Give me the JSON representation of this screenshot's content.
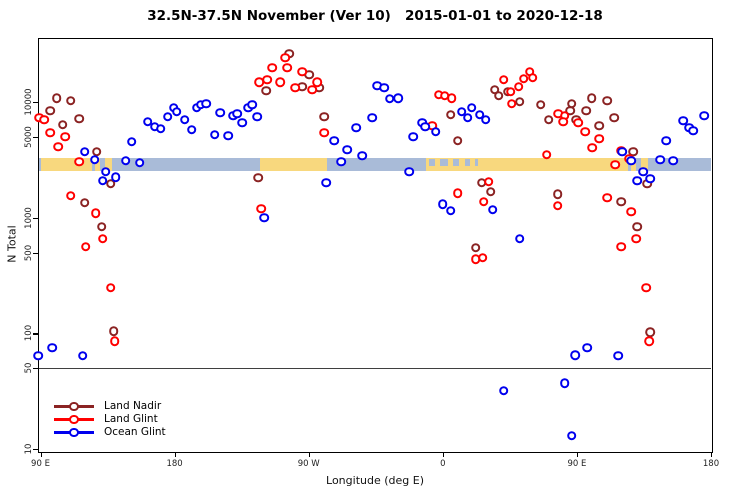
{
  "title": "32.5N-37.5N November (Ver 10)   2015-01-01 to 2020-12-18",
  "chart_data": {
    "type": "scatter",
    "title": "32.5N-37.5N November (Ver 10)   2015-01-01 to 2020-12-18",
    "xlabel": "Longitude (deg E)",
    "ylabel": "N Total",
    "y_scale": "log10",
    "y_domain": [
      9.6,
      36000
    ],
    "y_ticks": [
      {
        "v": 10,
        "label": "10"
      },
      {
        "v": 50,
        "label": "50"
      },
      {
        "v": 100,
        "label": "100"
      },
      {
        "v": 500,
        "label": "500"
      },
      {
        "v": 1000,
        "label": "1000"
      },
      {
        "v": 5000,
        "label": "5000"
      },
      {
        "v": 10000,
        "label": "10000"
      }
    ],
    "x_axis_span_deg": 450,
    "x_axis_note": "axis starts at 90E and wraps eastward through 180, 90W, 0, 90E to 180",
    "x_ticks": [
      {
        "d": 0,
        "label": "90 E"
      },
      {
        "d": 90,
        "label": "180"
      },
      {
        "d": 180,
        "label": "90 W"
      },
      {
        "d": 270,
        "label": "0"
      },
      {
        "d": 360,
        "label": "90 E"
      },
      {
        "d": 450,
        "label": "180"
      }
    ],
    "reference_line": {
      "value": 50,
      "color": "#3f3f3f"
    },
    "land_ocean_strip": {
      "value_range": [
        2550,
        3310
      ],
      "ocean_color": "#A9BBD8",
      "land_color": "#F8D87E",
      "land_segments_deg": [
        [
          0,
          34.5
        ],
        [
          36.5,
          40
        ],
        [
          43,
          48
        ],
        [
          147.5,
          192.5
        ],
        [
          258.5,
          394.5
        ],
        [
          396.5,
          400
        ],
        [
          403,
          408
        ]
      ],
      "ocean_patches_deg": [
        [
          260.5,
          265
        ],
        [
          268,
          273.5
        ],
        [
          277,
          281
        ],
        [
          285,
          288
        ],
        [
          291.5,
          293.5
        ]
      ]
    },
    "series": [
      {
        "name": "Land Nadir",
        "color": "#8B2323",
        "points": [
          [
            11,
            10900
          ],
          [
            20.4,
            10300
          ],
          [
            6.4,
            8440
          ],
          [
            25.8,
            7200
          ],
          [
            15,
            6380
          ],
          [
            37.8,
            3730
          ],
          [
            47.2,
            1970
          ],
          [
            29.8,
            1350
          ],
          [
            41.2,
            836
          ],
          [
            49.2,
            105
          ],
          [
            167,
            26300
          ],
          [
            180.3,
            17300
          ],
          [
            151.6,
            12600
          ],
          [
            175.7,
            13600
          ],
          [
            187,
            13400
          ],
          [
            190.4,
            7490
          ],
          [
            146.2,
            2220
          ],
          [
            275.4,
            7800
          ],
          [
            280.1,
            4640
          ],
          [
            296.1,
            2010
          ],
          [
            302.2,
            1680
          ],
          [
            292.1,
            550
          ],
          [
            304.8,
            12800
          ],
          [
            307.5,
            11400
          ],
          [
            313.5,
            12300
          ],
          [
            321.6,
            10100
          ],
          [
            335.6,
            9510
          ],
          [
            341,
            7050
          ],
          [
            347,
            1610
          ],
          [
            356.4,
            9710
          ],
          [
            355.7,
            8440
          ],
          [
            359.7,
            7050
          ],
          [
            366.4,
            8440
          ],
          [
            369.8,
            10900
          ],
          [
            375.1,
            6260
          ],
          [
            380.5,
            10300
          ],
          [
            385.2,
            7340
          ],
          [
            397.9,
            3730
          ],
          [
            389.8,
            1380
          ],
          [
            400.5,
            836
          ],
          [
            407.2,
            1970
          ],
          [
            409.2,
            103
          ]
        ]
      },
      {
        "name": "Land Glint",
        "color": "#FF0000",
        "points": [
          [
            -1,
            7340
          ],
          [
            2.3,
            7050
          ],
          [
            6.4,
            5450
          ],
          [
            16.4,
            5030
          ],
          [
            11.7,
            4120
          ],
          [
            25.8,
            3060
          ],
          [
            20.4,
            1550
          ],
          [
            37.1,
            1100
          ],
          [
            41.8,
            658
          ],
          [
            30.4,
            561
          ],
          [
            47.2,
            248
          ],
          [
            49.9,
            86
          ],
          [
            155.6,
            19900
          ],
          [
            164.3,
            24300
          ],
          [
            165.6,
            19900
          ],
          [
            160.9,
            15000
          ],
          [
            152.2,
            15700
          ],
          [
            146.9,
            15000
          ],
          [
            171,
            13400
          ],
          [
            175.7,
            18400
          ],
          [
            182.4,
            12800
          ],
          [
            185.7,
            15000
          ],
          [
            190.4,
            5450
          ],
          [
            148.2,
            1200
          ],
          [
            267.3,
            11600
          ],
          [
            271.4,
            11400
          ],
          [
            276,
            10900
          ],
          [
            262.7,
            6260
          ],
          [
            280.1,
            1640
          ],
          [
            300.8,
            2050
          ],
          [
            297.4,
            1380
          ],
          [
            292.1,
            441
          ],
          [
            296.8,
            451
          ],
          [
            310.9,
            15700
          ],
          [
            320.9,
            13600
          ],
          [
            328.3,
            18400
          ],
          [
            330.3,
            16300
          ],
          [
            324.2,
            16000
          ],
          [
            315.6,
            12300
          ],
          [
            316.2,
            9710
          ],
          [
            339.6,
            3510
          ],
          [
            347.6,
            7950
          ],
          [
            351.7,
            7640
          ],
          [
            351,
            6780
          ],
          [
            361,
            6650
          ],
          [
            365.7,
            5560
          ],
          [
            375.1,
            4830
          ],
          [
            370.4,
            4040
          ],
          [
            389.8,
            3800
          ],
          [
            395.2,
            3240
          ],
          [
            385.8,
            2880
          ],
          [
            380.5,
            1490
          ],
          [
            347,
            1270
          ],
          [
            396.5,
            1130
          ],
          [
            399.9,
            658
          ],
          [
            389.8,
            561
          ],
          [
            406.5,
            248
          ],
          [
            408.5,
            86
          ]
        ]
      },
      {
        "name": "Ocean Glint",
        "color": "#0000EE",
        "points": [
          [
            29.8,
            3730
          ],
          [
            36.5,
            3180
          ],
          [
            43.8,
            2500
          ],
          [
            50.5,
            2260
          ],
          [
            41.8,
            2090
          ],
          [
            57.2,
            3120
          ],
          [
            66.6,
            2990
          ],
          [
            61.2,
            4550
          ],
          [
            71.9,
            6780
          ],
          [
            76.6,
            6140
          ],
          [
            80.6,
            5900
          ],
          [
            85.3,
            7490
          ],
          [
            89.3,
            8960
          ],
          [
            91.3,
            8270
          ],
          [
            96.7,
            7050
          ],
          [
            101.4,
            5780
          ],
          [
            104.7,
            8960
          ],
          [
            107.4,
            9510
          ],
          [
            111.4,
            9710
          ],
          [
            116.8,
            5230
          ],
          [
            120.8,
            8110
          ],
          [
            126.1,
            5130
          ],
          [
            129.5,
            7640
          ],
          [
            132.2,
            7950
          ],
          [
            135.5,
            6650
          ],
          [
            139.5,
            8960
          ],
          [
            142.2,
            9510
          ],
          [
            145.5,
            7490
          ],
          [
            150.2,
            1000
          ],
          [
            197.1,
            4640
          ],
          [
            211.8,
            6010
          ],
          [
            222.5,
            7340
          ],
          [
            225.8,
            13900
          ],
          [
            230.5,
            13400
          ],
          [
            234.5,
            10700
          ],
          [
            239.9,
            10900
          ],
          [
            205.8,
            3880
          ],
          [
            215.8,
            3440
          ],
          [
            201.8,
            3060
          ],
          [
            247.3,
            2500
          ],
          [
            191.7,
            2010
          ],
          [
            256,
            6650
          ],
          [
            258,
            6140
          ],
          [
            265.3,
            5560
          ],
          [
            250,
            5030
          ],
          [
            282.7,
            8270
          ],
          [
            289.4,
            8960
          ],
          [
            286.8,
            7340
          ],
          [
            294.8,
            7800
          ],
          [
            298.8,
            7050
          ],
          [
            270,
            1320
          ],
          [
            275.4,
            1150
          ],
          [
            303.5,
            1180
          ],
          [
            321.6,
            658
          ],
          [
            390.5,
            3730
          ],
          [
            396.5,
            3120
          ],
          [
            415.9,
            3180
          ],
          [
            424.6,
            3120
          ],
          [
            404.5,
            2500
          ],
          [
            409.2,
            2180
          ],
          [
            400.5,
            2090
          ],
          [
            419.9,
            4640
          ],
          [
            431.3,
            6920
          ],
          [
            435.3,
            6010
          ],
          [
            438,
            5660
          ],
          [
            445.3,
            7640
          ],
          [
            7.7,
            75
          ],
          [
            -1.5,
            64
          ],
          [
            28.4,
            64
          ],
          [
            367,
            75
          ],
          [
            359,
            65
          ],
          [
            387.8,
            64
          ],
          [
            310.9,
            32
          ],
          [
            351.7,
            37
          ],
          [
            356.4,
            13
          ]
        ]
      }
    ],
    "legend": {
      "position": "bottom-left-inside",
      "items": [
        {
          "label": "Land Nadir",
          "color": "#8B2323"
        },
        {
          "label": "Land Glint",
          "color": "#FF0000"
        },
        {
          "label": "Ocean Glint",
          "color": "#0000EE"
        }
      ]
    }
  }
}
